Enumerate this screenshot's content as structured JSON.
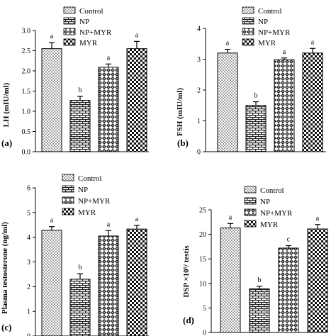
{
  "patterns": {
    "Control": "dots",
    "NP": "bricks",
    "NP+MYR": "diamonds",
    "MYR": "checks"
  },
  "chart_data": [
    {
      "type": "bar",
      "panel_label": "(a)",
      "ylabel": "LH (mIU/ml)",
      "ylim": [
        0,
        3.0
      ],
      "yticks": [
        "0.0",
        "0.5",
        "1.0",
        "1.5",
        "2.0",
        "2.5",
        "3.0"
      ],
      "categories": [
        "Control",
        "NP",
        "NP+MYR",
        "MYR"
      ],
      "values": [
        2.55,
        1.27,
        2.09,
        2.55
      ],
      "errors": [
        0.15,
        0.1,
        0.08,
        0.18
      ],
      "letters": [
        "a",
        "b",
        "a",
        "a"
      ],
      "legend": [
        "Control",
        "NP",
        "NP+MYR",
        "MYR"
      ]
    },
    {
      "type": "bar",
      "panel_label": "(b)",
      "ylabel": "FSH (mIU/ml)",
      "ylim": [
        0,
        4
      ],
      "yticks": [
        "0",
        "1",
        "2",
        "3",
        "4"
      ],
      "categories": [
        "Control",
        "NP",
        "NP+MYR",
        "MYR"
      ],
      "values": [
        3.2,
        1.5,
        2.98,
        3.2
      ],
      "errors": [
        0.12,
        0.12,
        0.06,
        0.15
      ],
      "letters": [
        "a",
        "b",
        "a",
        "a"
      ],
      "legend": [
        "Control",
        "NP",
        "NP+MYR",
        "MYR"
      ]
    },
    {
      "type": "bar",
      "panel_label": "(c)",
      "ylabel": "Plasma testosterone (ng/ml)",
      "ylim": [
        0,
        6
      ],
      "yticks": [
        "0",
        "1",
        "2",
        "3",
        "4",
        "5",
        "6"
      ],
      "categories": [
        "Control",
        "NP",
        "NP+MYR",
        "MYR"
      ],
      "values": [
        4.28,
        2.3,
        4.05,
        4.33
      ],
      "errors": [
        0.15,
        0.22,
        0.22,
        0.15
      ],
      "letters": [
        "a",
        "b",
        "a",
        "a"
      ],
      "legend": [
        "Control",
        "NP",
        "NP+MYR",
        "MYR"
      ]
    },
    {
      "type": "bar",
      "panel_label": "(d)",
      "ylabel": "DSP ×10⁵/ testis",
      "ylim": [
        0,
        25
      ],
      "yticks": [
        "0",
        "5",
        "10",
        "15",
        "20",
        "25"
      ],
      "categories": [
        "Control",
        "NP",
        "NP+MYR",
        "MYR"
      ],
      "values": [
        21.3,
        8.9,
        17.2,
        21.1
      ],
      "errors": [
        0.9,
        0.5,
        0.5,
        0.9
      ],
      "letters": [
        "a",
        "b",
        "c",
        "a"
      ],
      "legend": [
        "Control",
        "NP",
        "NP+MYR",
        "MYR"
      ]
    }
  ]
}
